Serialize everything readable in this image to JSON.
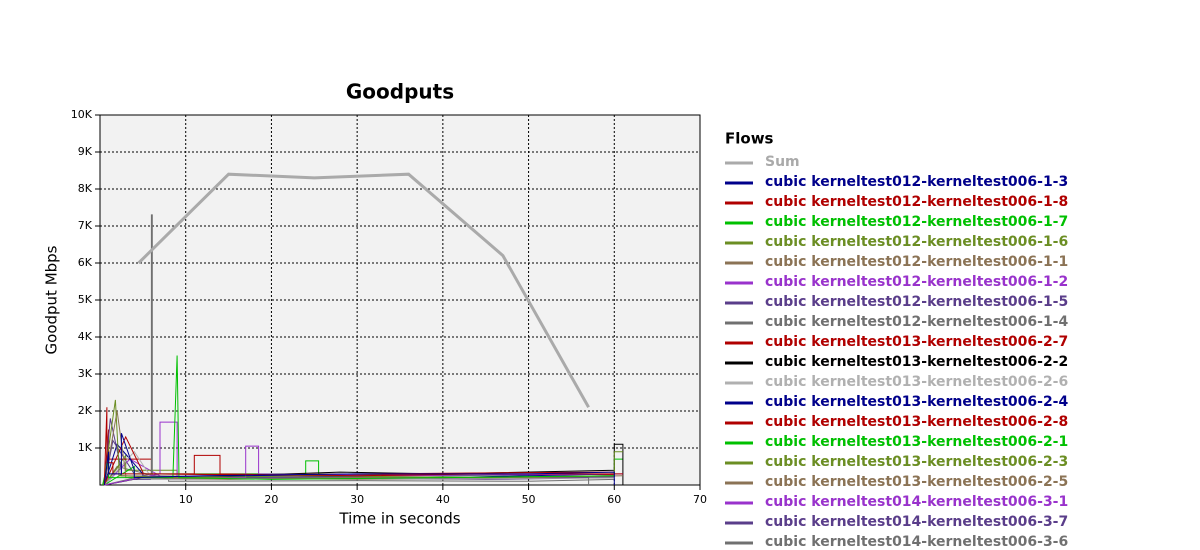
{
  "chart_data": {
    "type": "line",
    "title": "Goodputs",
    "x_label": "Time in seconds",
    "y_label": "Goodput Mbps",
    "legend_title": "Flows",
    "legend": "right",
    "grid": true,
    "xlim": [
      0,
      70
    ],
    "xticks": [
      10,
      20,
      30,
      40,
      50,
      60,
      70
    ],
    "ylim": [
      0,
      10000
    ],
    "yticks": [
      {
        "value": 1000,
        "label": "1K"
      },
      {
        "value": 2000,
        "label": "2K"
      },
      {
        "value": 3000,
        "label": "3K"
      },
      {
        "value": 4000,
        "label": "4K"
      },
      {
        "value": 5000,
        "label": "5K"
      },
      {
        "value": 6000,
        "label": "6K"
      },
      {
        "value": 7000,
        "label": "7K"
      },
      {
        "value": 8000,
        "label": "8K"
      },
      {
        "value": 9000,
        "label": "9K"
      },
      {
        "value": 10000,
        "label": "10K"
      }
    ],
    "series": [
      {
        "name": "Sum",
        "color": "#aaaaaa",
        "x": [
          4.5,
          15,
          25,
          36,
          47,
          57
        ],
        "values": [
          6000,
          8400,
          8300,
          8400,
          6200,
          2100
        ]
      },
      {
        "name": "cubic kerneltest012-kerneltest006-1-3",
        "color": "#00008b",
        "x": [
          0.5,
          1,
          1,
          2.5,
          2.5,
          4,
          4,
          12,
          30,
          50,
          60,
          60
        ],
        "values": [
          0,
          900,
          300,
          300,
          1400,
          400,
          200,
          250,
          300,
          300,
          350,
          0
        ]
      },
      {
        "name": "cubic kerneltest012-kerneltest006-1-8",
        "color": "#b00000",
        "x": [
          0.5,
          0.8,
          0.8,
          1.5,
          1.5,
          11,
          11,
          14,
          14,
          30,
          45,
          61
        ],
        "values": [
          0,
          2100,
          600,
          600,
          300,
          300,
          800,
          800,
          300,
          250,
          300,
          300
        ]
      },
      {
        "name": "cubic kerneltest012-kerneltest006-1-7",
        "color": "#00c000",
        "x": [
          0.3,
          1,
          1,
          8.5,
          9,
          9,
          9.2,
          9.2,
          20,
          40,
          60
        ],
        "values": [
          0,
          700,
          200,
          200,
          3500,
          3500,
          400,
          200,
          150,
          200,
          250
        ]
      },
      {
        "name": "cubic kerneltest012-kerneltest006-1-6",
        "color": "#6b8e23",
        "x": [
          0.4,
          1.8,
          1.8,
          2.2,
          2.2,
          10,
          25,
          45,
          60,
          60,
          61
        ],
        "values": [
          0,
          2300,
          2300,
          500,
          250,
          200,
          250,
          200,
          250,
          900,
          900
        ]
      },
      {
        "name": "cubic kerneltest012-kerneltest006-1-1",
        "color": "#8b7355",
        "x": [
          0.5,
          2,
          2,
          3,
          3,
          15,
          30,
          50,
          61
        ],
        "values": [
          0,
          2000,
          2000,
          300,
          200,
          150,
          200,
          200,
          250
        ]
      },
      {
        "name": "cubic kerneltest012-kerneltest006-1-2",
        "color": "#9932cc",
        "x": [
          0.5,
          7,
          7,
          9,
          9,
          17,
          17,
          18.5,
          18.5,
          35,
          61
        ],
        "values": [
          0,
          300,
          1700,
          1700,
          200,
          200,
          1050,
          1050,
          300,
          250,
          300
        ]
      },
      {
        "name": "cubic kerneltest012-kerneltest006-1-5",
        "color": "#5a3d8a",
        "x": [
          0.5,
          1.2,
          1.2,
          2.5,
          2.5,
          15,
          30,
          50,
          60
        ],
        "values": [
          0,
          1800,
          1800,
          400,
          250,
          200,
          180,
          200,
          220
        ]
      },
      {
        "name": "cubic kerneltest012-kerneltest006-1-4",
        "color": "#707070",
        "x": [
          0.5,
          6,
          6,
          6.1,
          6.1,
          20,
          40,
          57,
          57
        ],
        "values": [
          0,
          300,
          7300,
          7300,
          250,
          200,
          220,
          200,
          0
        ]
      },
      {
        "name": "cubic kerneltest013-kerneltest006-2-7",
        "color": "#b00000",
        "x": [
          0.5,
          3,
          3,
          5,
          5,
          20,
          40,
          60
        ],
        "values": [
          0,
          1300,
          1300,
          350,
          300,
          280,
          320,
          350
        ]
      },
      {
        "name": "cubic kerneltest013-kerneltest006-2-2",
        "color": "#000000",
        "x": [
          0.5,
          5,
          15,
          28,
          28,
          40,
          60,
          60,
          61,
          61
        ],
        "values": [
          0,
          200,
          250,
          350,
          350,
          300,
          400,
          1100,
          1100,
          0
        ]
      },
      {
        "name": "cubic kerneltest013-kerneltest006-2-6",
        "color": "#b0b0b0",
        "x": [
          0.5,
          4,
          4,
          6,
          6,
          20,
          40,
          60
        ],
        "values": [
          0,
          900,
          900,
          200,
          150,
          180,
          160,
          200
        ]
      },
      {
        "name": "cubic kerneltest013-kerneltest006-2-4",
        "color": "#00008b",
        "x": [
          0.5,
          2,
          2,
          5,
          5,
          20,
          40,
          60
        ],
        "values": [
          0,
          1100,
          1100,
          300,
          200,
          250,
          200,
          300
        ]
      },
      {
        "name": "cubic kerneltest013-kerneltest006-2-8",
        "color": "#b00000",
        "x": [
          0.5,
          1,
          1,
          6,
          6,
          25,
          45,
          60
        ],
        "values": [
          0,
          1500,
          700,
          700,
          300,
          250,
          300,
          280
        ]
      },
      {
        "name": "cubic kerneltest013-kerneltest006-2-1",
        "color": "#00c000",
        "x": [
          0.5,
          4,
          4,
          24,
          24,
          25.5,
          25.5,
          40,
          60,
          60,
          61
        ],
        "values": [
          0,
          500,
          300,
          300,
          650,
          650,
          300,
          250,
          300,
          700,
          700
        ]
      },
      {
        "name": "cubic kerneltest013-kerneltest006-2-3",
        "color": "#6b8e23",
        "x": [
          0.5,
          3,
          3,
          9,
          9,
          20,
          40,
          60
        ],
        "values": [
          0,
          800,
          400,
          400,
          200,
          180,
          200,
          220
        ]
      },
      {
        "name": "cubic kerneltest013-kerneltest006-2-5",
        "color": "#8b7355",
        "x": [
          0.5,
          2.5,
          2.5,
          10,
          30,
          50,
          60
        ],
        "values": [
          0,
          600,
          250,
          200,
          150,
          180,
          200
        ]
      },
      {
        "name": "cubic kerneltest014-kerneltest006-3-1",
        "color": "#9932cc",
        "x": [
          0.5,
          3.5,
          3.5,
          7,
          7,
          20,
          40,
          60
        ],
        "values": [
          0,
          700,
          700,
          250,
          200,
          220,
          200,
          250
        ]
      },
      {
        "name": "cubic kerneltest014-kerneltest006-3-7",
        "color": "#5a3d8a",
        "x": [
          0.5,
          1.5,
          1.5,
          4,
          4,
          25,
          45,
          60
        ],
        "values": [
          0,
          1200,
          1200,
          300,
          150,
          170,
          150,
          200
        ]
      },
      {
        "name": "cubic kerneltest014-kerneltest006-3-6",
        "color": "#707070",
        "x": [
          0.5,
          2,
          2,
          8,
          8,
          30,
          50,
          60
        ],
        "values": [
          0,
          500,
          500,
          150,
          100,
          120,
          100,
          150
        ]
      }
    ]
  }
}
